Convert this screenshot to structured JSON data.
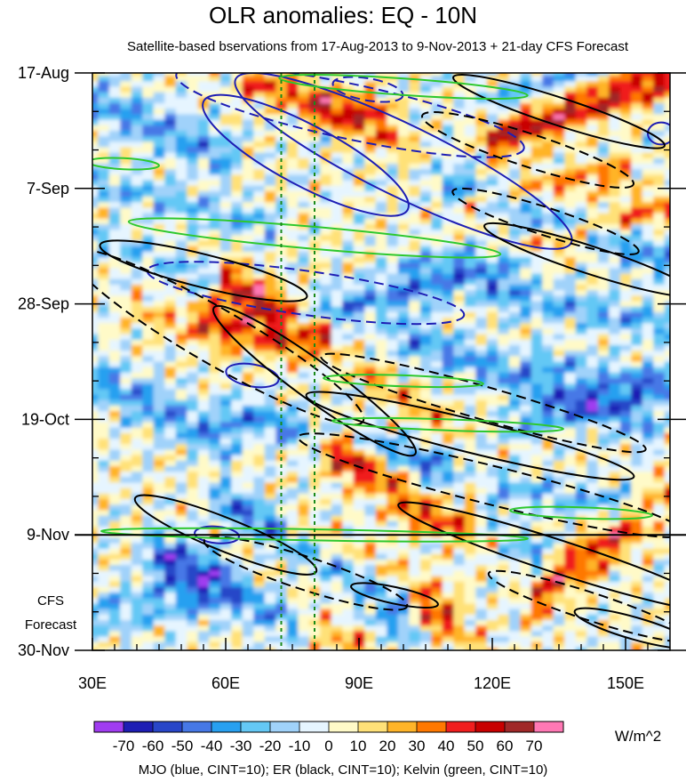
{
  "chart_data": {
    "type": "heatmap",
    "title": "OLR anomalies: EQ - 10N",
    "subtitle": "Satellite-based bservations from 17-Aug-2013 to 9-Nov-2013 + 21-day CFS Forecast",
    "x_axis": {
      "range": [
        30,
        160
      ],
      "ticks": [
        {
          "value": 30,
          "label": "30E"
        },
        {
          "value": 60,
          "label": "60E"
        },
        {
          "value": 90,
          "label": "90E"
        },
        {
          "value": 120,
          "label": "120E"
        },
        {
          "value": 150,
          "label": "150E"
        }
      ]
    },
    "y_axis": {
      "range_days": [
        0,
        105
      ],
      "ticks": [
        {
          "day": 0,
          "label": "17-Aug"
        },
        {
          "day": 21,
          "label": "7-Sep"
        },
        {
          "day": 42,
          "label": "28-Sep"
        },
        {
          "day": 63,
          "label": "19-Oct"
        },
        {
          "day": 84,
          "label": "9-Nov"
        },
        {
          "day": 105,
          "label": "30-Nov"
        }
      ]
    },
    "forecast_start_day": 84,
    "forecast_label": [
      "CFS",
      "Forecast"
    ],
    "reference_lines_lon": [
      72.5,
      80
    ],
    "colorbar": {
      "unit": "W/m^2",
      "levels": [
        -70,
        -60,
        -50,
        -40,
        -30,
        -20,
        -10,
        0,
        10,
        20,
        30,
        40,
        50,
        60,
        70
      ],
      "tick_labels": [
        "-70",
        "-60",
        "-50",
        "-40",
        "-30",
        "-20",
        "-10",
        "0",
        "10",
        "20",
        "30",
        "40",
        "50",
        "60",
        "70"
      ],
      "colors": [
        "#a03cf0",
        "#1e1eb4",
        "#2846c8",
        "#4678e6",
        "#28a0f0",
        "#64c8f5",
        "#a0d2fa",
        "#e6f5ff",
        "#fffac8",
        "#ffe178",
        "#ffb428",
        "#ff7800",
        "#f01e1e",
        "#c80000",
        "#a02828",
        "#ff78b4"
      ]
    },
    "contours": [
      {
        "name": "MJO",
        "color": "#1e1eb4",
        "cint": 10,
        "shapes": [
          {
            "lon": 78,
            "day": 15,
            "rx": 26,
            "ry": 5.5,
            "rot": 28,
            "dashed": false
          },
          {
            "lon": 100,
            "day": 16,
            "rx": 42,
            "ry": 6.5,
            "rot": 26,
            "dashed": false
          },
          {
            "lon": 88,
            "day": 7,
            "rx": 40,
            "ry": 5,
            "rot": 12,
            "dashed": true
          },
          {
            "lon": 92,
            "day": 3,
            "rx": 8,
            "ry": 2,
            "rot": 10,
            "dashed": true
          },
          {
            "lon": 78,
            "day": 40,
            "rx": 36,
            "ry": 4,
            "rot": 8,
            "dashed": true
          },
          {
            "lon": 66,
            "day": 55,
            "rx": 6,
            "ry": 2,
            "rot": 10,
            "dashed": false
          },
          {
            "lon": 58,
            "day": 84,
            "rx": 5,
            "ry": 1.5,
            "rot": 5,
            "dashed": false
          },
          {
            "lon": 158,
            "day": 11,
            "rx": 3,
            "ry": 2,
            "rot": 0,
            "dashed": false
          }
        ]
      },
      {
        "name": "ER",
        "color": "#000000",
        "cint": 10,
        "shapes": [
          {
            "lon": 135,
            "day": 7,
            "rx": 25,
            "ry": 2.5,
            "rot": 18,
            "dashed": false
          },
          {
            "lon": 128,
            "day": 14,
            "rx": 25,
            "ry": 3,
            "rot": 18,
            "dashed": true
          },
          {
            "lon": 132,
            "day": 27,
            "rx": 22,
            "ry": 2.5,
            "rot": 18,
            "dashed": true
          },
          {
            "lon": 142,
            "day": 34,
            "rx": 25,
            "ry": 2.5,
            "rot": 18,
            "dashed": false
          },
          {
            "lon": 55,
            "day": 36,
            "rx": 24,
            "ry": 3,
            "rot": 14,
            "dashed": false
          },
          {
            "lon": 58,
            "day": 48,
            "rx": 38,
            "ry": 5,
            "rot": 30,
            "dashed": true
          },
          {
            "lon": 80,
            "day": 56,
            "rx": 28,
            "ry": 3.5,
            "rot": 36,
            "dashed": false
          },
          {
            "lon": 118,
            "day": 60,
            "rx": 38,
            "ry": 3,
            "rot": 16,
            "dashed": true
          },
          {
            "lon": 115,
            "day": 66,
            "rx": 38,
            "ry": 3,
            "rot": 14,
            "dashed": false
          },
          {
            "lon": 120,
            "day": 75,
            "rx": 45,
            "ry": 3.5,
            "rot": 14,
            "dashed": true
          },
          {
            "lon": 60,
            "day": 84,
            "rx": 22,
            "ry": 3,
            "rot": 22,
            "dashed": false
          },
          {
            "lon": 78,
            "day": 91,
            "rx": 24,
            "ry": 3,
            "rot": 18,
            "dashed": true
          },
          {
            "lon": 98,
            "day": 95,
            "rx": 10,
            "ry": 1.5,
            "rot": 12,
            "dashed": false
          },
          {
            "lon": 135,
            "day": 88,
            "rx": 38,
            "ry": 3,
            "rot": 18,
            "dashed": false
          },
          {
            "lon": 142,
            "day": 97,
            "rx": 24,
            "ry": 2.5,
            "rot": 18,
            "dashed": true
          },
          {
            "lon": 152,
            "day": 101,
            "rx": 14,
            "ry": 2,
            "rot": 16,
            "dashed": false
          }
        ]
      },
      {
        "name": "Kelvin",
        "color": "#2ec82e",
        "cint": 10,
        "shapes": [
          {
            "lon": 100,
            "day": 2.5,
            "rx": 28,
            "ry": 1.5,
            "rot": 4,
            "dashed": false
          },
          {
            "lon": 37,
            "day": 16.5,
            "rx": 8,
            "ry": 1,
            "rot": 3,
            "dashed": false
          },
          {
            "lon": 80,
            "day": 30,
            "rx": 42,
            "ry": 2,
            "rot": 5,
            "dashed": false
          },
          {
            "lon": 100,
            "day": 56,
            "rx": 18,
            "ry": 1,
            "rot": 2,
            "dashed": false
          },
          {
            "lon": 110,
            "day": 64,
            "rx": 26,
            "ry": 1,
            "rot": 2,
            "dashed": false
          },
          {
            "lon": 140,
            "day": 80,
            "rx": 16,
            "ry": 1,
            "rot": 2,
            "dashed": false
          },
          {
            "lon": 80,
            "day": 84,
            "rx": 48,
            "ry": 1,
            "rot": 1,
            "dashed": false
          }
        ]
      }
    ],
    "legend_note": "MJO (blue, CINT=10); ER (black, CINT=10); Kelvin (green, CINT=10)"
  }
}
